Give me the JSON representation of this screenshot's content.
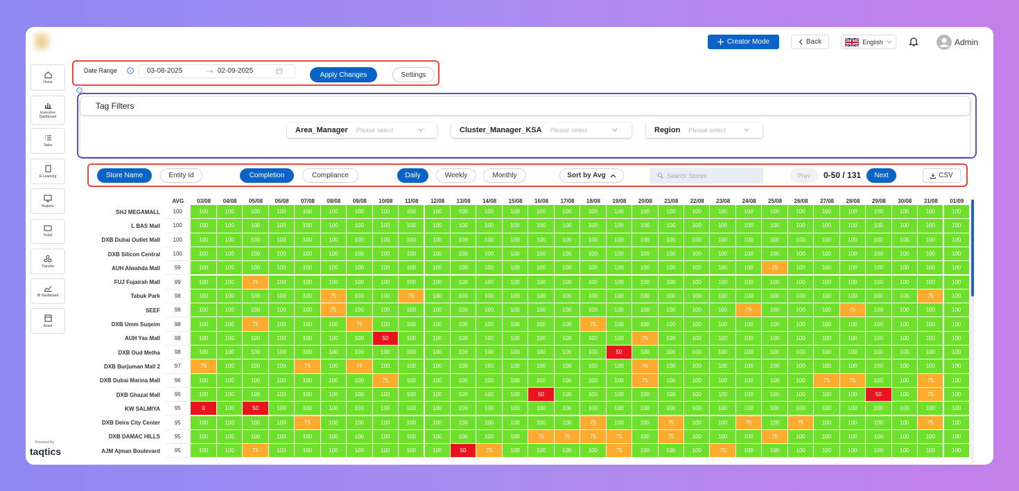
{
  "header": {
    "creator_mode": "Creator Mode",
    "back": "Back",
    "language": "English",
    "user": "Admin"
  },
  "sidebar": {
    "items": [
      "Home",
      "Executive Dashboard",
      "Tasks",
      "E-Learning",
      "Reports",
      "Ticket",
      "Transfer",
      "BI Dashboard",
      "Asset"
    ],
    "powered_by": "Powered By",
    "brand": "taqtics"
  },
  "date_range": {
    "label": "Date Range",
    "start": "03-08-2025",
    "end": "02-09-2025",
    "apply": "Apply Changes",
    "settings": "Settings"
  },
  "tag_filters": {
    "title": "Tag Filters",
    "filters": [
      {
        "label": "Area_Manager",
        "placeholder": "Please select"
      },
      {
        "label": "Cluster_Manager_KSA",
        "placeholder": "Please select"
      },
      {
        "label": "Region",
        "placeholder": "Please select"
      }
    ]
  },
  "toolbar": {
    "view": [
      "Store Name",
      "Entity Id"
    ],
    "view_selected": 0,
    "metric": [
      "Completion",
      "Compliance"
    ],
    "metric_selected": 0,
    "period": [
      "Daily",
      "Weekly",
      "Monthly"
    ],
    "period_selected": 0,
    "sort": "Sort by Avg",
    "search_placeholder": "Search Stores",
    "prev": "Prev",
    "page_info": "0-50 / 131",
    "next": "Next",
    "export": "CSV"
  },
  "heatmap": {
    "avg_label": "AVG",
    "colors": {
      "full": "#6ee02b",
      "partial": "#ffab2e",
      "low": "#e8141e"
    },
    "dates": [
      "03/08",
      "04/08",
      "05/08",
      "06/08",
      "07/08",
      "08/08",
      "09/08",
      "10/08",
      "11/08",
      "12/08",
      "13/08",
      "14/08",
      "15/08",
      "16/08",
      "17/08",
      "18/08",
      "19/08",
      "20/08",
      "21/08",
      "22/08",
      "23/08",
      "24/08",
      "25/08",
      "26/08",
      "27/08",
      "28/08",
      "29/08",
      "30/08",
      "31/08",
      "01/09"
    ],
    "rows": [
      {
        "store": "SHJ MEGAMALL",
        "avg": 100,
        "values": [
          100,
          100,
          100,
          100,
          100,
          100,
          100,
          100,
          100,
          100,
          100,
          100,
          100,
          100,
          100,
          100,
          100,
          100,
          100,
          100,
          100,
          100,
          100,
          100,
          100,
          100,
          100,
          100,
          100,
          100
        ]
      },
      {
        "store": "L BAS Mall",
        "avg": 100,
        "values": [
          100,
          100,
          100,
          100,
          100,
          100,
          100,
          100,
          100,
          100,
          100,
          100,
          100,
          100,
          100,
          100,
          100,
          100,
          100,
          100,
          100,
          100,
          100,
          100,
          100,
          100,
          100,
          100,
          100,
          100
        ]
      },
      {
        "store": "DXB Dubai Outlet Mall",
        "avg": 100,
        "values": [
          100,
          100,
          100,
          100,
          100,
          100,
          100,
          100,
          100,
          100,
          100,
          100,
          100,
          100,
          100,
          100,
          100,
          100,
          100,
          100,
          100,
          100,
          100,
          100,
          100,
          100,
          100,
          100,
          100,
          100
        ]
      },
      {
        "store": "DXB Silicon Central",
        "avg": 100,
        "values": [
          100,
          100,
          100,
          100,
          100,
          100,
          100,
          100,
          100,
          100,
          100,
          100,
          100,
          100,
          100,
          100,
          100,
          100,
          100,
          100,
          100,
          100,
          100,
          100,
          100,
          100,
          100,
          100,
          100,
          100
        ]
      },
      {
        "store": "AUH Alwahda Mall",
        "avg": 99,
        "values": [
          100,
          100,
          100,
          100,
          100,
          100,
          100,
          100,
          100,
          100,
          100,
          100,
          100,
          100,
          100,
          100,
          100,
          100,
          100,
          100,
          100,
          100,
          75,
          100,
          100,
          100,
          100,
          100,
          100,
          100
        ]
      },
      {
        "store": "FUJ Fujairah Mall",
        "avg": 99,
        "values": [
          100,
          100,
          75,
          100,
          100,
          100,
          100,
          100,
          100,
          100,
          100,
          100,
          100,
          100,
          100,
          100,
          100,
          100,
          100,
          100,
          100,
          100,
          100,
          100,
          100,
          100,
          100,
          100,
          100,
          100
        ]
      },
      {
        "store": "Tabuk Park",
        "avg": 98,
        "values": [
          100,
          100,
          100,
          100,
          100,
          75,
          100,
          100,
          75,
          100,
          100,
          100,
          100,
          100,
          100,
          100,
          100,
          100,
          100,
          100,
          100,
          100,
          100,
          100,
          100,
          100,
          100,
          100,
          75,
          100
        ]
      },
      {
        "store": "SEEF",
        "avg": 98,
        "values": [
          100,
          100,
          100,
          100,
          100,
          75,
          100,
          100,
          100,
          100,
          100,
          100,
          100,
          100,
          100,
          100,
          100,
          100,
          100,
          100,
          100,
          75,
          100,
          100,
          100,
          75,
          100,
          100,
          100,
          100
        ]
      },
      {
        "store": "DXB Umm Suqeim",
        "avg": 98,
        "values": [
          100,
          100,
          75,
          100,
          100,
          100,
          75,
          100,
          100,
          100,
          100,
          100,
          100,
          100,
          100,
          75,
          100,
          100,
          100,
          100,
          100,
          100,
          100,
          100,
          100,
          100,
          100,
          100,
          100,
          100
        ]
      },
      {
        "store": "AUH Yas Mall",
        "avg": 98,
        "values": [
          100,
          100,
          100,
          100,
          100,
          100,
          100,
          50,
          100,
          100,
          100,
          100,
          100,
          100,
          100,
          100,
          100,
          75,
          100,
          100,
          100,
          100,
          100,
          100,
          100,
          100,
          100,
          100,
          100,
          100
        ]
      },
      {
        "store": "DXB Oud Metha",
        "avg": 98,
        "values": [
          100,
          100,
          100,
          100,
          100,
          100,
          100,
          100,
          100,
          100,
          100,
          100,
          100,
          100,
          100,
          100,
          50,
          100,
          100,
          100,
          100,
          100,
          100,
          100,
          100,
          100,
          100,
          100,
          100,
          100
        ]
      },
      {
        "store": "DXB Burjuman Mall 2",
        "avg": 97,
        "values": [
          75,
          100,
          100,
          100,
          75,
          100,
          75,
          100,
          100,
          100,
          100,
          100,
          100,
          100,
          100,
          100,
          100,
          75,
          100,
          100,
          100,
          100,
          100,
          100,
          100,
          100,
          100,
          100,
          100,
          100
        ]
      },
      {
        "store": "DXB Dubai Marina Mall",
        "avg": 96,
        "values": [
          100,
          100,
          100,
          100,
          100,
          100,
          100,
          75,
          100,
          100,
          100,
          100,
          100,
          100,
          100,
          100,
          100,
          75,
          100,
          100,
          100,
          100,
          100,
          100,
          75,
          75,
          100,
          100,
          75,
          100
        ]
      },
      {
        "store": "DXB Ghazal Mall",
        "avg": 96,
        "values": [
          100,
          100,
          100,
          100,
          100,
          100,
          100,
          100,
          100,
          100,
          100,
          100,
          100,
          50,
          100,
          100,
          100,
          100,
          100,
          100,
          100,
          100,
          100,
          100,
          100,
          100,
          50,
          100,
          75,
          100
        ]
      },
      {
        "store": "KW SALMIYA",
        "avg": 95,
        "values": [
          0,
          100,
          50,
          100,
          100,
          100,
          100,
          100,
          100,
          100,
          100,
          100,
          100,
          100,
          100,
          100,
          100,
          100,
          100,
          100,
          100,
          100,
          100,
          100,
          100,
          100,
          100,
          100,
          100,
          100
        ]
      },
      {
        "store": "DXB Deira City Center",
        "avg": 95,
        "values": [
          100,
          100,
          100,
          100,
          75,
          100,
          100,
          100,
          100,
          100,
          100,
          100,
          100,
          100,
          100,
          75,
          100,
          100,
          75,
          100,
          100,
          75,
          100,
          75,
          100,
          100,
          100,
          100,
          75,
          100
        ]
      },
      {
        "store": "DXB DAMAC HILLS",
        "avg": 95,
        "values": [
          100,
          100,
          100,
          100,
          100,
          100,
          100,
          100,
          100,
          100,
          100,
          100,
          100,
          75,
          75,
          75,
          75,
          100,
          75,
          100,
          100,
          100,
          75,
          100,
          100,
          100,
          100,
          100,
          100,
          100
        ]
      },
      {
        "store": "AJM Ajman Boulevard",
        "avg": 95,
        "values": [
          100,
          100,
          75,
          100,
          100,
          100,
          100,
          100,
          100,
          100,
          50,
          75,
          100,
          100,
          100,
          100,
          75,
          100,
          100,
          100,
          75,
          100,
          100,
          100,
          100,
          100,
          100,
          100,
          100,
          100
        ]
      }
    ]
  }
}
